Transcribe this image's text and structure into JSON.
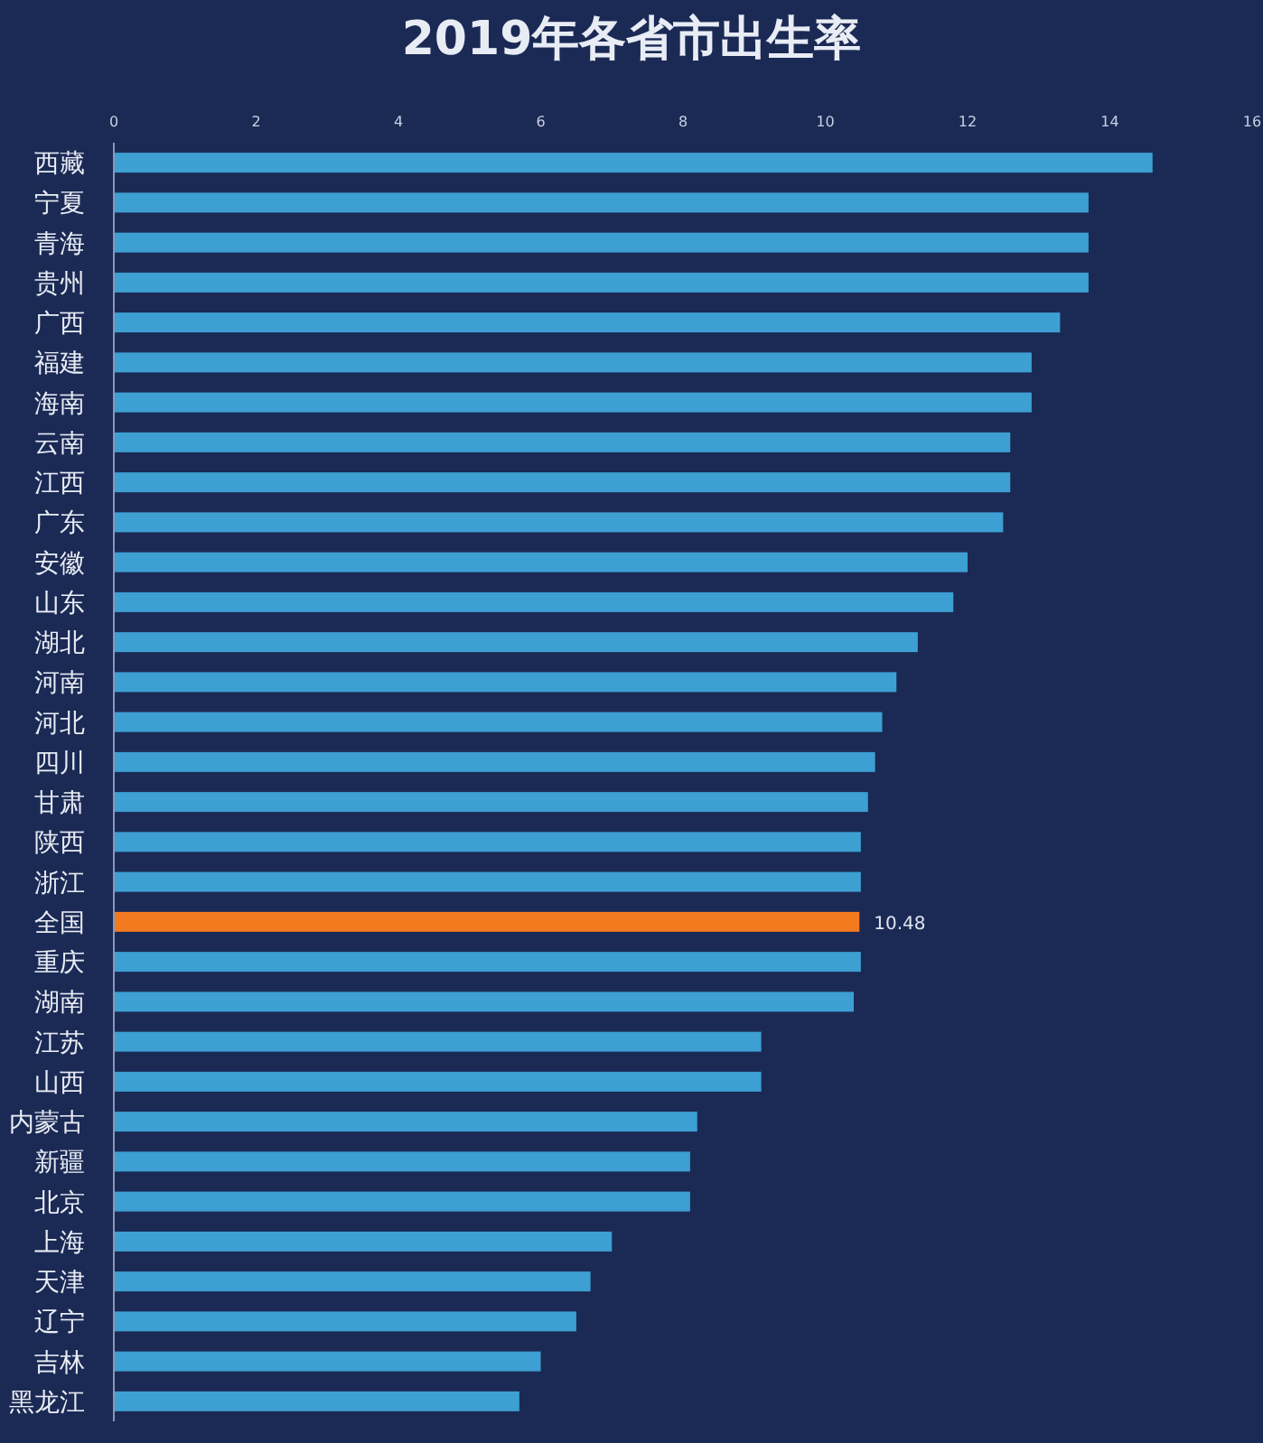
{
  "chart_data": {
    "type": "bar",
    "orientation": "horizontal",
    "title": "2019年各省市出生率",
    "categories": [
      "西藏",
      "宁夏",
      "青海",
      "贵州",
      "广西",
      "福建",
      "海南",
      "云南",
      "江西",
      "广东",
      "安徽",
      "山东",
      "湖北",
      "河南",
      "河北",
      "四川",
      "甘肃",
      "陕西",
      "浙江",
      "全国",
      "重庆",
      "湖南",
      "江苏",
      "山西",
      "内蒙古",
      "新疆",
      "北京",
      "上海",
      "天津",
      "辽宁",
      "吉林",
      "黑龙江"
    ],
    "values": [
      14.6,
      13.7,
      13.7,
      13.7,
      13.3,
      12.9,
      12.9,
      12.6,
      12.6,
      12.5,
      12.0,
      11.8,
      11.3,
      11.0,
      10.8,
      10.7,
      10.6,
      10.5,
      10.5,
      10.48,
      10.5,
      10.4,
      9.1,
      9.1,
      8.2,
      8.1,
      8.1,
      7.0,
      6.7,
      6.5,
      6.0,
      5.7
    ],
    "colors": [
      "#3d9fd2",
      "#3d9fd2",
      "#3d9fd2",
      "#3d9fd2",
      "#3d9fd2",
      "#3d9fd2",
      "#3d9fd2",
      "#3d9fd2",
      "#3d9fd2",
      "#3d9fd2",
      "#3d9fd2",
      "#3d9fd2",
      "#3d9fd2",
      "#3d9fd2",
      "#3d9fd2",
      "#3d9fd2",
      "#3d9fd2",
      "#3d9fd2",
      "#3d9fd2",
      "#f47a20",
      "#3d9fd2",
      "#3d9fd2",
      "#3d9fd2",
      "#3d9fd2",
      "#3d9fd2",
      "#3d9fd2",
      "#3d9fd2",
      "#3d9fd2",
      "#3d9fd2",
      "#3d9fd2",
      "#3d9fd2",
      "#3d9fd2"
    ],
    "value_labels": [
      null,
      null,
      null,
      null,
      null,
      null,
      null,
      null,
      null,
      null,
      null,
      null,
      null,
      null,
      null,
      null,
      null,
      null,
      null,
      "10.48",
      null,
      null,
      null,
      null,
      null,
      null,
      null,
      null,
      null,
      null,
      null,
      null
    ],
    "xlim": [
      0,
      16
    ],
    "xticks": [
      0,
      2,
      4,
      6,
      8,
      10,
      12,
      14,
      16
    ],
    "grid": false
  }
}
